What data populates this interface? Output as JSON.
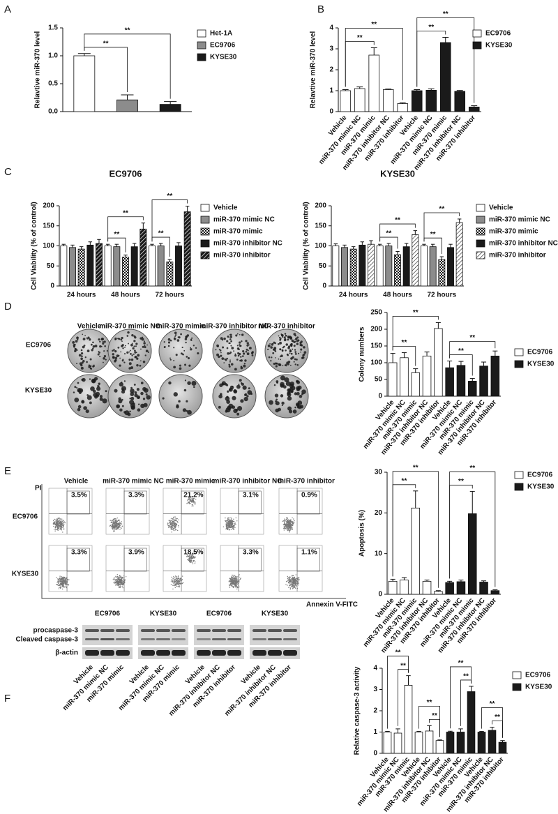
{
  "panel_labels": [
    "A",
    "B",
    "C",
    "D",
    "E",
    "F"
  ],
  "chart_data": [
    {
      "type": "bar",
      "categories": [
        null
      ],
      "ylabel": "Relavtive miR-370 level",
      "ylim": [
        0,
        1.5
      ],
      "yticks": [
        {
          "value": 0,
          "label": "0.0"
        },
        {
          "value": 0.5,
          "label": "0.5"
        },
        {
          "value": 1,
          "label": "1.0"
        },
        {
          "value": 1.5,
          "label": "1.5"
        }
      ],
      "series": [
        {
          "name": "Het-1A",
          "color": "#ffffff",
          "pattern": "solid",
          "values": [
            1.0
          ],
          "errors": [
            0.04
          ]
        },
        {
          "name": "EC9706",
          "color": "#8c8c8c",
          "pattern": "solid",
          "values": [
            0.21
          ],
          "errors": [
            0.09
          ]
        },
        {
          "name": "KYSE30",
          "color": "#1a1a1a",
          "pattern": "solid",
          "values": [
            0.13
          ],
          "errors": [
            0.05
          ]
        }
      ],
      "annotations": [
        {
          "text": "**",
          "from": [
            0,
            0
          ],
          "to": [
            0,
            1
          ]
        },
        {
          "text": "**",
          "from": [
            0,
            0
          ],
          "to": [
            0,
            2
          ]
        }
      ]
    },
    {
      "type": "bar",
      "categories": [
        "Vehicle",
        "miR-370 mimic NC",
        "miR-370 mimic",
        "miR-370 inhibitor NC",
        "miR-370 inhibitor",
        "Vehicle",
        "miR-370 mimic NC",
        "miR-370 mimic",
        "miR-370 inhibitor NC",
        "miR-370 inhibitor"
      ],
      "ylabel": "Relavtive miR-370 level",
      "ylim": [
        0,
        4
      ],
      "yticks": [
        0,
        1,
        2,
        3,
        4
      ],
      "series": [
        {
          "name": "EC9706",
          "color": "#ffffff",
          "pattern": "solid",
          "values": [
            1.0,
            1.1,
            2.7,
            1.05,
            0.38,
            null,
            null,
            null,
            null,
            null
          ],
          "errors": [
            0.05,
            0.08,
            0.35,
            0.03,
            0.04,
            null,
            null,
            null,
            null,
            null
          ]
        },
        {
          "name": "KYSE30",
          "color": "#1a1a1a",
          "pattern": "solid",
          "values": [
            null,
            null,
            null,
            null,
            null,
            1.0,
            1.02,
            3.3,
            0.97,
            0.22
          ],
          "errors": [
            null,
            null,
            null,
            null,
            null,
            0.05,
            0.07,
            0.25,
            0.04,
            0.06
          ]
        }
      ],
      "annotations": [
        {
          "text": "**",
          "from": [
            0,
            0
          ],
          "to": [
            2,
            0
          ]
        },
        {
          "text": "**",
          "from": [
            0,
            0
          ],
          "to": [
            4,
            0
          ]
        },
        {
          "text": "**",
          "from": [
            5,
            1
          ],
          "to": [
            7,
            1
          ]
        },
        {
          "text": "**",
          "from": [
            5,
            1
          ],
          "to": [
            9,
            1
          ]
        }
      ]
    },
    {
      "type": "bar",
      "title": "EC9706",
      "categories": [
        "24 hours",
        "48 hours",
        "72 hours"
      ],
      "ylabel": "Cell Viability (% of control)",
      "ylim": [
        0,
        200
      ],
      "yticks": [
        0,
        50,
        100,
        150,
        200
      ],
      "series": [
        {
          "name": "Vehicle",
          "color": "#ffffff",
          "pattern": "solid",
          "values": [
            100,
            100,
            100
          ],
          "errors": [
            4,
            4,
            4
          ]
        },
        {
          "name": "miR-370 mimic NC",
          "color": "#8c8c8c",
          "pattern": "solid",
          "values": [
            96,
            98,
            100
          ],
          "errors": [
            6,
            6,
            6
          ]
        },
        {
          "name": "miR-370 mimic",
          "color": "#ffffff",
          "pattern": "checker",
          "values": [
            92,
            72,
            60
          ],
          "errors": [
            6,
            5,
            6
          ]
        },
        {
          "name": "miR-370 inhibitor NC",
          "color": "#1a1a1a",
          "pattern": "solid",
          "values": [
            102,
            98,
            100
          ],
          "errors": [
            8,
            8,
            8
          ]
        },
        {
          "name": "miR-370 inhibitor",
          "color": "#1a1a1a",
          "pattern": "hatch",
          "values": [
            106,
            142,
            185
          ],
          "errors": [
            10,
            15,
            14
          ]
        }
      ],
      "annotations": [
        {
          "text": "**",
          "from": [
            1,
            0
          ],
          "to": [
            1,
            2
          ]
        },
        {
          "text": "**",
          "from": [
            1,
            0
          ],
          "to": [
            1,
            4
          ]
        },
        {
          "text": "**",
          "from": [
            2,
            0
          ],
          "to": [
            2,
            2
          ]
        },
        {
          "text": "**",
          "from": [
            2,
            0
          ],
          "to": [
            2,
            4
          ]
        }
      ]
    },
    {
      "type": "bar",
      "title": "KYSE30",
      "categories": [
        "24 hours",
        "48 hours",
        "72 hours"
      ],
      "ylabel": "Cell Viability (% of control)",
      "ylim": [
        0,
        200
      ],
      "yticks": [
        0,
        50,
        100,
        150,
        200
      ],
      "series": [
        {
          "name": "Vehicle",
          "color": "#ffffff",
          "pattern": "solid",
          "values": [
            100,
            100,
            100
          ],
          "errors": [
            5,
            4,
            4
          ]
        },
        {
          "name": "miR-370 mimic NC",
          "color": "#8c8c8c",
          "pattern": "solid",
          "values": [
            96,
            100,
            98
          ],
          "errors": [
            6,
            6,
            6
          ]
        },
        {
          "name": "miR-370 mimic",
          "color": "#ffffff",
          "pattern": "checker",
          "values": [
            92,
            78,
            66
          ],
          "errors": [
            6,
            8,
            7
          ]
        },
        {
          "name": "miR-370 inhibitor NC",
          "color": "#1a1a1a",
          "pattern": "solid",
          "values": [
            102,
            98,
            96
          ],
          "errors": [
            8,
            8,
            8
          ]
        },
        {
          "name": "miR-370 inhibitor",
          "color": "#ffffff",
          "pattern": "hatch",
          "values": [
            104,
            128,
            158
          ],
          "errors": [
            9,
            10,
            9
          ]
        }
      ],
      "annotations": [
        {
          "text": "**",
          "from": [
            1,
            0
          ],
          "to": [
            1,
            2
          ]
        },
        {
          "text": "**",
          "from": [
            1,
            0
          ],
          "to": [
            1,
            4
          ]
        },
        {
          "text": "**",
          "from": [
            2,
            0
          ],
          "to": [
            2,
            2
          ]
        },
        {
          "text": "**",
          "from": [
            2,
            0
          ],
          "to": [
            2,
            4
          ]
        }
      ]
    },
    {
      "type": "bar",
      "categories": [
        "Vehicle",
        "miR-370 mimic NC",
        "miR-370 mimic",
        "miR-370 inhibitor NC",
        "miR-370 inhibitor",
        "Vehicle",
        "miR-370 mimic NC",
        "miR-370 mimic",
        "miR-370 inhibitor NC",
        "miR-370 inhibitor"
      ],
      "ylabel": "Colony numbers",
      "ylim": [
        0,
        250
      ],
      "yticks": [
        0,
        50,
        100,
        150,
        200,
        250
      ],
      "series": [
        {
          "name": "EC9706",
          "color": "#ffffff",
          "pattern": "solid",
          "values": [
            100,
            115,
            70,
            120,
            202,
            null,
            null,
            null,
            null,
            null
          ],
          "errors": [
            28,
            15,
            12,
            12,
            18,
            null,
            null,
            null,
            null,
            null
          ]
        },
        {
          "name": "KYSE30",
          "color": "#1a1a1a",
          "pattern": "solid",
          "values": [
            null,
            null,
            null,
            null,
            null,
            85,
            92,
            45,
            90,
            120
          ],
          "errors": [
            null,
            null,
            null,
            null,
            null,
            20,
            12,
            8,
            12,
            15
          ]
        }
      ],
      "annotations": [
        {
          "text": "**",
          "from": [
            0,
            0
          ],
          "to": [
            2,
            0
          ]
        },
        {
          "text": "**",
          "from": [
            0,
            0
          ],
          "to": [
            4,
            0
          ]
        },
        {
          "text": "**",
          "from": [
            5,
            1
          ],
          "to": [
            7,
            1
          ]
        },
        {
          "text": "**",
          "from": [
            5,
            1
          ],
          "to": [
            9,
            1
          ]
        }
      ]
    },
    {
      "type": "bar",
      "categories": [
        "Vehicle",
        "miR-370 mimic NC",
        "miR-370 mimic",
        "miR-370 inhibitor NC",
        "miR-370 inhibitor",
        "Vehicle",
        "miR-370 mimic NC",
        "miR-370 mimic",
        "miR-370 inhibitor NC",
        "miR-370 inhibitor"
      ],
      "ylabel": "Apoptosis (%)",
      "ylim": [
        0,
        30
      ],
      "yticks": [
        0,
        10,
        20,
        30
      ],
      "series": [
        {
          "name": "EC9706",
          "color": "#ffffff",
          "pattern": "solid",
          "values": [
            3.2,
            3.5,
            21.2,
            3.2,
            0.7,
            null,
            null,
            null,
            null,
            null
          ],
          "errors": [
            0.5,
            0.6,
            4.2,
            0.3,
            0.2,
            null,
            null,
            null,
            null,
            null
          ]
        },
        {
          "name": "KYSE30",
          "color": "#1a1a1a",
          "pattern": "solid",
          "values": [
            null,
            null,
            null,
            null,
            null,
            2.9,
            3.1,
            19.8,
            3.0,
            0.9
          ],
          "errors": [
            null,
            null,
            null,
            null,
            null,
            0.3,
            0.4,
            5.5,
            0.3,
            0.2
          ]
        }
      ],
      "annotations": [
        {
          "text": "**",
          "from": [
            0,
            0
          ],
          "to": [
            2,
            0
          ]
        },
        {
          "text": "**",
          "from": [
            0,
            0
          ],
          "to": [
            4,
            0
          ]
        },
        {
          "text": "**",
          "from": [
            5,
            1
          ],
          "to": [
            7,
            1
          ]
        },
        {
          "text": "**",
          "from": [
            5,
            1
          ],
          "to": [
            9,
            1
          ]
        }
      ]
    },
    {
      "type": "bar",
      "categories": [
        "Vehicle",
        "miR-370 mimic NC",
        "miR-370 mimic",
        "Vehicle",
        "miR-370 inhibitor NC",
        "miR-370 inhibitor",
        "Vehicle",
        "miR-370 mimic NC",
        "miR-370 mimic",
        "Vehicle",
        "miR-370 inhibitor NC",
        "miR-370 inhibitor"
      ],
      "ylabel": "Relative caspase-3 activity",
      "ylim": [
        0,
        4
      ],
      "yticks": [
        0,
        1,
        2,
        3,
        4
      ],
      "series": [
        {
          "name": "EC9706",
          "color": "#ffffff",
          "pattern": "solid",
          "values": [
            1.0,
            0.95,
            3.2,
            1.0,
            1.05,
            0.6,
            null,
            null,
            null,
            null,
            null,
            null
          ],
          "errors": [
            0.03,
            0.2,
            0.45,
            0.03,
            0.25,
            0.03,
            null,
            null,
            null,
            null,
            null,
            null
          ]
        },
        {
          "name": "KYSE30",
          "color": "#1a1a1a",
          "pattern": "solid",
          "values": [
            null,
            null,
            null,
            null,
            null,
            null,
            1.0,
            1.0,
            2.9,
            1.0,
            1.08,
            0.52
          ],
          "errors": [
            null,
            null,
            null,
            null,
            null,
            null,
            0.04,
            0.15,
            0.25,
            0.03,
            0.15,
            0.08
          ]
        }
      ],
      "annotations": [
        {
          "text": "**",
          "from": [
            1,
            0
          ],
          "to": [
            2,
            0
          ]
        },
        {
          "text": "**",
          "from": [
            0,
            0
          ],
          "to": [
            2,
            0
          ]
        },
        {
          "text": "**",
          "from": [
            4,
            0
          ],
          "to": [
            5,
            0
          ]
        },
        {
          "text": "**",
          "from": [
            3,
            0
          ],
          "to": [
            5,
            0
          ]
        },
        {
          "text": "**",
          "from": [
            7,
            1
          ],
          "to": [
            8,
            1
          ]
        },
        {
          "text": "**",
          "from": [
            6,
            1
          ],
          "to": [
            8,
            1
          ]
        },
        {
          "text": "**",
          "from": [
            10,
            1
          ],
          "to": [
            11,
            1
          ]
        },
        {
          "text": "**",
          "from": [
            9,
            1
          ],
          "to": [
            11,
            1
          ]
        }
      ]
    }
  ],
  "colony_images": {
    "columns": [
      "Vehicle",
      "miR-370 mimic NC",
      "miR-370 mimic",
      "miR-370 inhibitor NC",
      "miR-370 inhibitor"
    ],
    "rows": [
      "EC9706",
      "KYSE30"
    ]
  },
  "flow_cytometry": {
    "columns": [
      "Vehicle",
      "miR-370 mimic NC",
      "miR-370 mimic",
      "miR-370 inhibitor NC",
      "miR-370 inhibitor"
    ],
    "rows": [
      "EC9706",
      "KYSE30"
    ],
    "y_axis_label": "PI",
    "x_axis_label": "Annexin V-FITC",
    "percentages": [
      [
        "3.5%",
        "3.3%",
        "21.2%",
        "3.1%",
        "0.9%"
      ],
      [
        "3.3%",
        "3.9%",
        "18.5%",
        "3.3%",
        "1.1%"
      ]
    ]
  },
  "western_blot": {
    "groups": [
      "EC9706",
      "KYSE30",
      "EC9706",
      "KYSE30"
    ],
    "rows": [
      "procaspase-3",
      "Cleaved caspase-3",
      "β-actin"
    ],
    "lanes": [
      "Vehicle",
      "miR-370 mimic NC",
      "miR-370 mimic",
      "Vehicle",
      "miR-370 mimic NC",
      "miR-370 mimic",
      "Vehicle",
      "miR-370 inhibitor NC",
      "miR-370 inhibitor",
      "Vehicle",
      "miR-370 inhibitor NC",
      "miR-370 inhibitor"
    ]
  }
}
